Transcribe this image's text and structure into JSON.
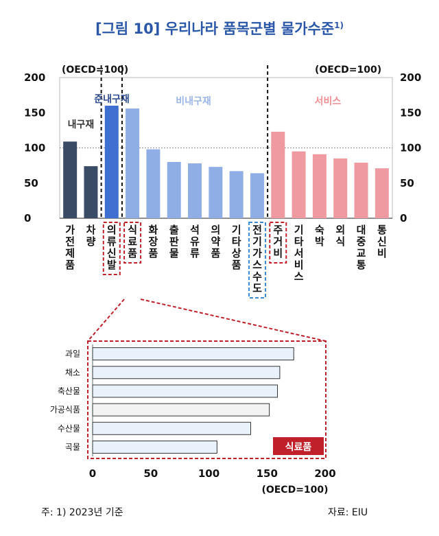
{
  "title": "[그림 10] 우리나라 품목군별 물가수준",
  "title_sup": "1)",
  "note": "주: 1) 2023년 기준",
  "source": "자료: EIU",
  "colors": {
    "durable": "#3a4b66",
    "semi_durable": "#3f6fd0",
    "non_durable": "#8faee6",
    "service": "#ee9aa0",
    "dashed_red": "#c0202a",
    "dashed_blue": "#3a8ad0",
    "food_bar_fill": "#e9f1fb",
    "food_bar_fill2": "#f3f3f3"
  },
  "chart_data": [
    {
      "type": "bar",
      "ylim": [
        0,
        200
      ],
      "yticks": [
        "0",
        "50",
        "100",
        "150",
        "200"
      ],
      "y_unit_left": "(OECD=100)",
      "y_unit_right": "(OECD=100)",
      "reference_line": 100,
      "groups": [
        {
          "name": "내구재",
          "start": 0,
          "end": 1
        },
        {
          "name": "준내구재",
          "start": 2,
          "end": 2
        },
        {
          "name": "비내구재",
          "start": 3,
          "end": 9
        },
        {
          "name": "서비스",
          "start": 10,
          "end": 15
        }
      ],
      "categories": [
        "가전제품",
        "차량",
        "의류·신발",
        "식료품",
        "화장품",
        "출판물",
        "석유류",
        "의약품",
        "기타상품",
        "전기·가스·수도",
        "주거비",
        "기타서비스",
        "숙박",
        "외식",
        "대중교통",
        "통신비"
      ],
      "values": [
        109,
        74,
        160,
        156,
        98,
        80,
        78,
        73,
        67,
        64,
        123,
        95,
        91,
        85,
        79,
        71
      ]
    },
    {
      "type": "bar",
      "orientation": "horizontal",
      "label": "식료품",
      "xlim": [
        0,
        200
      ],
      "xticks": [
        "0",
        "50",
        "100",
        "150",
        "200"
      ],
      "x_unit": "(OECD=100)",
      "categories": [
        "과일",
        "채소",
        "축산물",
        "가공식품",
        "수산물",
        "곡물"
      ],
      "values": [
        173,
        161,
        159,
        152,
        136,
        107
      ]
    }
  ]
}
